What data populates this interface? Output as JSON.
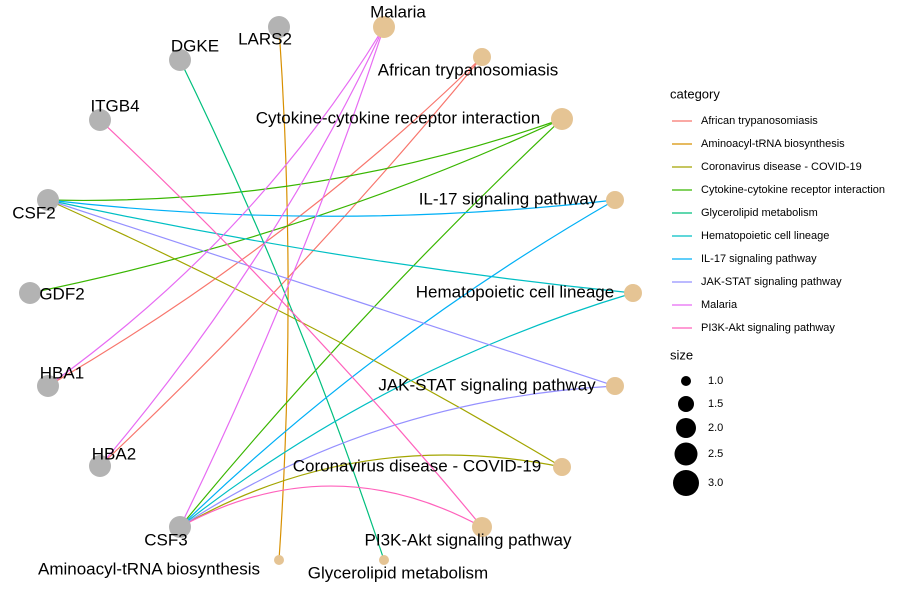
{
  "nodes": [
    {
      "label": "LARS2"
    },
    {
      "label": "DGKE"
    },
    {
      "label": "ITGB4"
    },
    {
      "label": "CSF2"
    },
    {
      "label": "GDF2"
    },
    {
      "label": "HBA1"
    },
    {
      "label": "HBA2"
    },
    {
      "label": "CSF3"
    },
    {
      "label": "Aminoacyl-tRNA biosynthesis"
    },
    {
      "label": "Glycerolipid metabolism"
    },
    {
      "label": "PI3K-Akt signaling pathway"
    },
    {
      "label": "Coronavirus disease - COVID-19"
    },
    {
      "label": "JAK-STAT signaling pathway"
    },
    {
      "label": "Hematopoietic cell lineage"
    },
    {
      "label": "IL-17 signaling pathway"
    },
    {
      "label": "Cytokine-cytokine receptor interaction"
    },
    {
      "label": "African trypanosomiasis"
    },
    {
      "label": "Malaria"
    }
  ],
  "legend": {
    "title": "category",
    "items": [
      "African trypanosomiasis",
      "Aminoacyl-tRNA biosynthesis",
      "Coronavirus disease - COVID-19",
      "Cytokine-cytokine receptor interaction",
      "Glycerolipid metabolism",
      "Hematopoietic cell lineage",
      "IL-17 signaling pathway",
      "JAK-STAT signaling pathway",
      "Malaria",
      "PI3K-Akt signaling pathway"
    ]
  },
  "size_legend": {
    "title": "size",
    "items": [
      "1.0",
      "1.5",
      "2.0",
      "2.5",
      "3.0"
    ]
  }
}
